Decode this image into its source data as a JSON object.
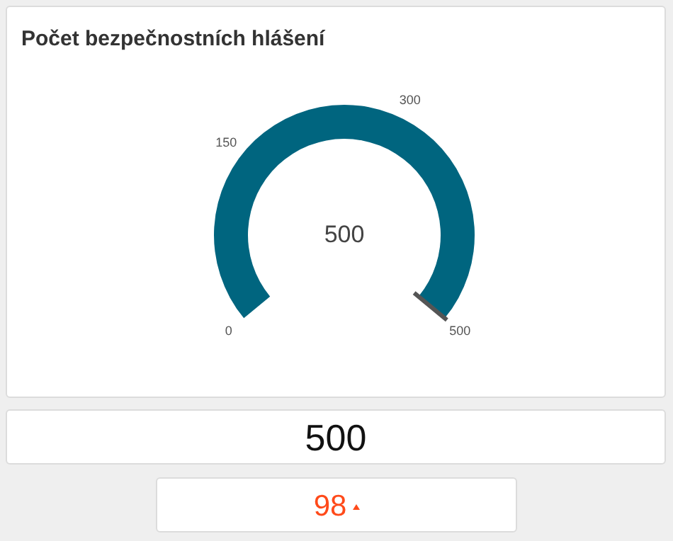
{
  "chart_data": [
    {
      "type": "other",
      "title": "Počet bezpečnostních hlášení",
      "categories": [
        null
      ],
      "values": [
        500
      ],
      "colors": [
        "#00657f"
      ],
      "annotations": [
        "0",
        "150",
        "300",
        "500"
      ],
      "data_labels": true
    },
    {
      "type": "other",
      "annotations": [
        "500"
      ]
    },
    {
      "type": "other",
      "annotations": [
        "98"
      ]
    }
  ]
}
